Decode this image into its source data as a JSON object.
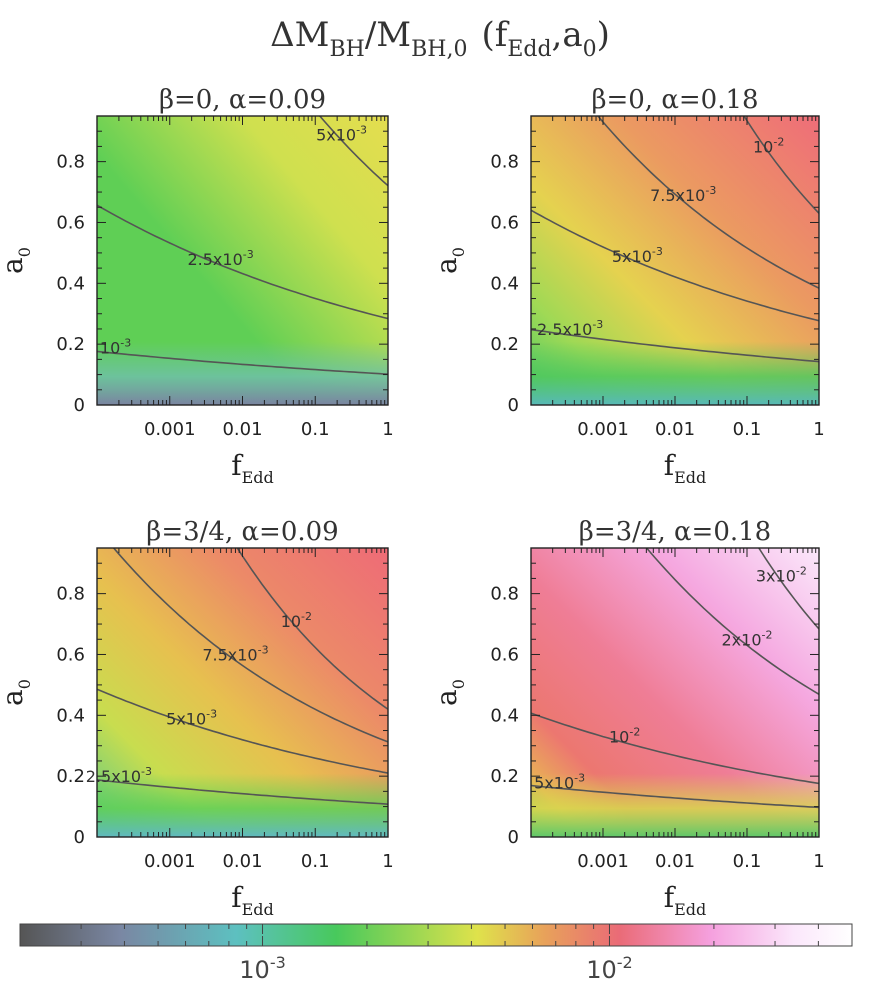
{
  "figure": {
    "title_main_1": "ΔM",
    "title_sub_1": "BH",
    "title_main_2": "/M",
    "title_sub_2": "BH,0",
    "title_main_3": "(f",
    "title_sub_3": "Edd",
    "title_main_4": ",a",
    "title_sub_4": "0",
    "title_main_5": ")"
  },
  "chart_data": [
    {
      "type": "heatmap",
      "title": "β=0,  α=0.09",
      "xlabel": "f_Edd",
      "ylabel": "a_0",
      "xscale": "log",
      "xlim": [
        0.0001,
        1
      ],
      "ylim": [
        0,
        0.95
      ],
      "xticks": [
        "0.001",
        "0.01",
        "0.1",
        "1"
      ],
      "yticks": [
        "0",
        "0.2",
        "0.4",
        "0.6",
        "0.8"
      ],
      "contours": [
        {
          "level": "10^-3",
          "label": [
            "10",
            "-3"
          ],
          "label_at": [
            0.00018,
            0.17
          ]
        },
        {
          "level": "2.5x10^-3",
          "label": [
            "2.5x10",
            "-3"
          ],
          "label_at": [
            0.005,
            0.46
          ]
        },
        {
          "level": "5x10^-3",
          "label": [
            "5x10",
            "-3"
          ],
          "label_at": [
            0.23,
            0.87
          ]
        }
      ]
    },
    {
      "type": "heatmap",
      "title": "β=0,  α=0.18",
      "xlabel": "f_Edd",
      "ylabel": "a_0",
      "xscale": "log",
      "xlim": [
        0.0001,
        1
      ],
      "ylim": [
        0,
        0.95
      ],
      "xticks": [
        "0.001",
        "0.01",
        "0.1",
        "1"
      ],
      "yticks": [
        "0",
        "0.2",
        "0.4",
        "0.6",
        "0.8"
      ],
      "contours": [
        {
          "level": "2.5x10^-3",
          "label": [
            "2.5x10",
            "-3"
          ],
          "label_at": [
            0.00035,
            0.23
          ]
        },
        {
          "level": "5x10^-3",
          "label": [
            "5x10",
            "-3"
          ],
          "label_at": [
            0.003,
            0.47
          ]
        },
        {
          "level": "7.5x10^-3",
          "label": [
            "7.5x10",
            "-3"
          ],
          "label_at": [
            0.013,
            0.67
          ]
        },
        {
          "level": "10^-2",
          "label": [
            "10",
            "-2"
          ],
          "label_at": [
            0.2,
            0.83
          ]
        }
      ]
    },
    {
      "type": "heatmap",
      "title": "β=3/4,  α=0.09",
      "xlabel": "f_Edd",
      "ylabel": "a_0",
      "xscale": "log",
      "xlim": [
        0.0001,
        1
      ],
      "ylim": [
        0,
        0.95
      ],
      "xticks": [
        "0.001",
        "0.01",
        "0.1",
        "1"
      ],
      "yticks": [
        "0",
        "0.2",
        "0.4",
        "0.6",
        "0.8"
      ],
      "contours": [
        {
          "level": "2.5x10^-3",
          "label": [
            "2.5x10",
            "-3"
          ],
          "label_at": [
            0.0002,
            0.18
          ]
        },
        {
          "level": "5x10^-3",
          "label": [
            "5x10",
            "-3"
          ],
          "label_at": [
            0.002,
            0.37
          ]
        },
        {
          "level": "7.5x10^-3",
          "label": [
            "7.5x10",
            "-3"
          ],
          "label_at": [
            0.008,
            0.58
          ]
        },
        {
          "level": "10^-2",
          "label": [
            "10",
            "-2"
          ],
          "label_at": [
            0.055,
            0.69
          ]
        }
      ]
    },
    {
      "type": "heatmap",
      "title": "β=3/4,  α=0.18",
      "xlabel": "f_Edd",
      "ylabel": "a_0",
      "xscale": "log",
      "xlim": [
        0.0001,
        1
      ],
      "ylim": [
        0,
        0.95
      ],
      "xticks": [
        "0.001",
        "0.01",
        "0.1",
        "1"
      ],
      "yticks": [
        "0",
        "0.2",
        "0.4",
        "0.6",
        "0.8"
      ],
      "contours": [
        {
          "level": "5x10^-3",
          "label": [
            "5x10",
            "-3"
          ],
          "label_at": [
            0.00025,
            0.16
          ]
        },
        {
          "level": "10^-2",
          "label": [
            "10",
            "-2"
          ],
          "label_at": [
            0.002,
            0.31
          ]
        },
        {
          "level": "2x10^-2",
          "label": [
            "2x10",
            "-2"
          ],
          "label_at": [
            0.1,
            0.63
          ]
        },
        {
          "level": "3x10^-2",
          "label": [
            "3x10",
            "-2"
          ],
          "label_at": [
            0.3,
            0.84
          ]
        }
      ]
    }
  ],
  "colorbar": {
    "scale": "log",
    "range": [
      0.0002,
      0.05
    ],
    "ticks": [
      {
        "value": 0.001,
        "base": "10",
        "exp": "-3"
      },
      {
        "value": 0.01,
        "base": "10",
        "exp": "-2"
      }
    ],
    "colors": [
      "#555555",
      "#7a87a3",
      "#5dc0c0",
      "#48c95c",
      "#dfe24b",
      "#e8a25a",
      "#ea6b77",
      "#f5a0de",
      "#fbe7fb",
      "#ffffff"
    ]
  }
}
